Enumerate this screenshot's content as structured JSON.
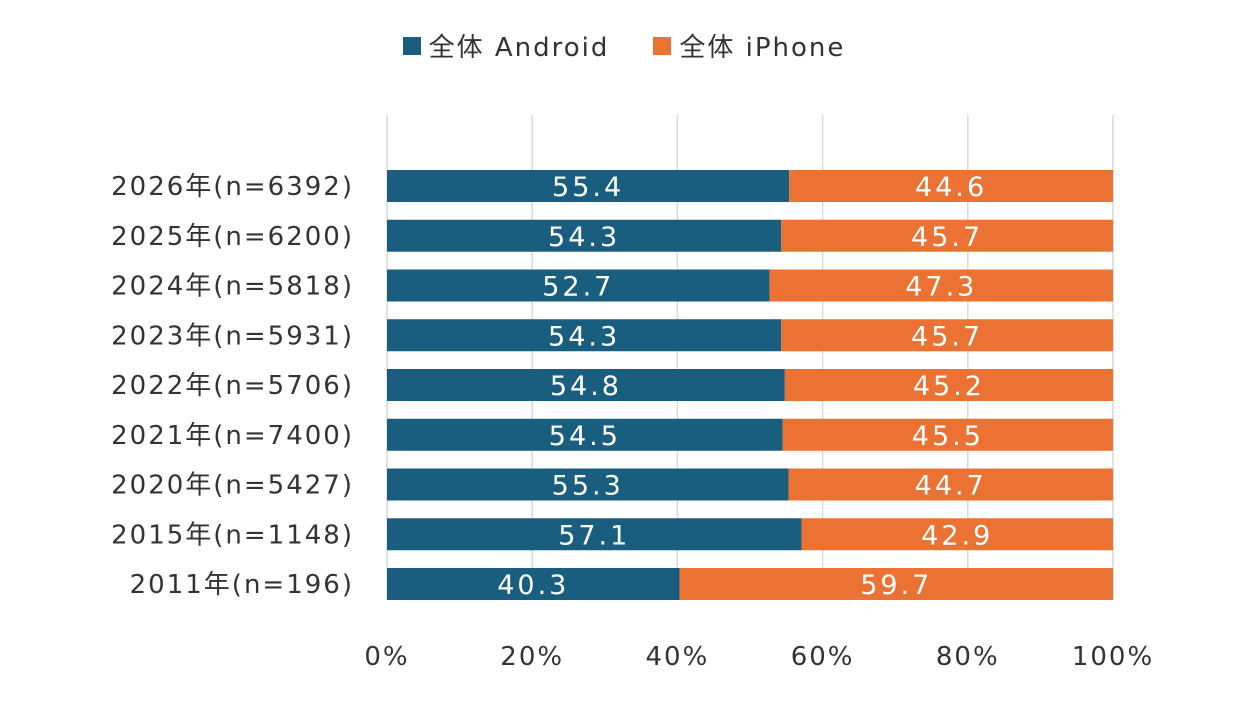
{
  "chart_data": {
    "type": "bar",
    "orientation": "horizontal",
    "stacked": true,
    "categories": [
      "2026年(n=6392)",
      "2025年(n=6200)",
      "2024年(n=5818)",
      "2023年(n=5931)",
      "2022年(n=5706)",
      "2021年(n=7400)",
      "2020年(n=5427)",
      "2015年(n=1148)",
      "2011年(n=196)"
    ],
    "series": [
      {
        "name": "全体 Android",
        "color": "#1a5e7f",
        "values": [
          55.4,
          54.3,
          52.7,
          54.3,
          54.8,
          54.5,
          55.3,
          57.1,
          40.3
        ]
      },
      {
        "name": "全体 iPhone",
        "color": "#eb7233",
        "values": [
          44.6,
          45.7,
          47.3,
          45.7,
          45.2,
          45.5,
          44.7,
          42.9,
          59.7
        ]
      }
    ],
    "value_labels": [
      [
        "55.4",
        "54.3",
        "52.7",
        "54.3",
        "54.8",
        "54.5",
        "55.3",
        "57.1",
        "40.3"
      ],
      [
        "44.6",
        "45.7",
        "47.3",
        "45.7",
        "45.2",
        "45.5",
        "44.7",
        "42.9",
        "59.7"
      ]
    ],
    "xlim": [
      0,
      100
    ],
    "xticks": [
      "0%",
      "20%",
      "40%",
      "60%",
      "80%",
      "100%"
    ],
    "grid": true,
    "legend_position": "top"
  }
}
